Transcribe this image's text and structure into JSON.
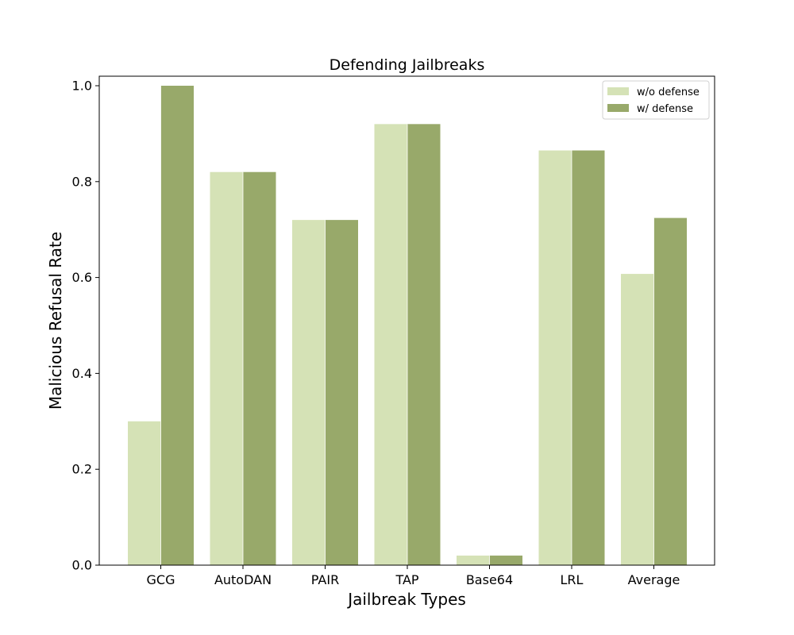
{
  "chart_data": {
    "type": "bar",
    "title": "Defending Jailbreaks",
    "xlabel": "Jailbreak Types",
    "ylabel": "Malicious Refusal Rate",
    "categories": [
      "GCG",
      "AutoDAN",
      "PAIR",
      "TAP",
      "Base64",
      "LRL",
      "Average"
    ],
    "series": [
      {
        "name": "w/o defense",
        "color": "#d5e2b6",
        "values": [
          0.3,
          0.82,
          0.72,
          0.92,
          0.02,
          0.865,
          0.6075
        ]
      },
      {
        "name": "w/ defense",
        "color": "#98a96a",
        "values": [
          1.0,
          0.82,
          0.72,
          0.92,
          0.02,
          0.865,
          0.7242
        ]
      }
    ],
    "ylim": [
      0.0,
      1.02
    ],
    "yticks": [
      0.0,
      0.2,
      0.4,
      0.6,
      0.8,
      1.0
    ],
    "ytick_labels": [
      "0.0",
      "0.2",
      "0.4",
      "0.6",
      "0.8",
      "1.0"
    ],
    "grid": false,
    "legend_position": "top-right"
  }
}
